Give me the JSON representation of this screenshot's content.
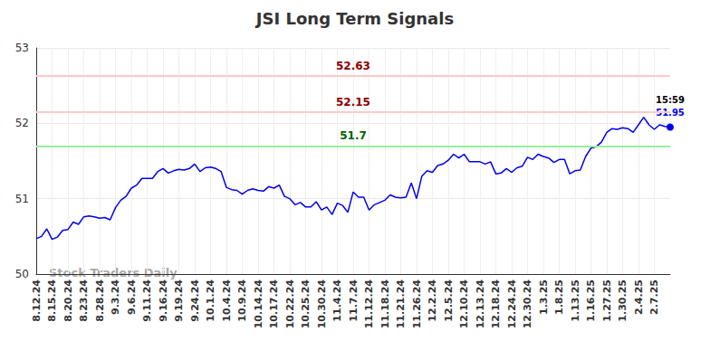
{
  "chart_data": {
    "type": "line",
    "title": "JSI Long Term Signals",
    "watermark": "Stock Traders Daily",
    "color": "#0000ee",
    "grid": true,
    "ylim": [
      50,
      53
    ],
    "yticks": [
      50,
      51,
      52,
      53
    ],
    "categories": [
      "8.12.24",
      null,
      null,
      "8.15.24",
      null,
      null,
      "8.20.24",
      null,
      null,
      "8.23.24",
      null,
      null,
      "8.28.24",
      null,
      null,
      "9.3.24",
      null,
      null,
      "9.6.24",
      null,
      null,
      "9.11.24",
      null,
      null,
      "9.16.24",
      null,
      null,
      "9.19.24",
      null,
      null,
      "9.24.24",
      null,
      null,
      "10.1.24",
      null,
      null,
      "10.4.24",
      null,
      null,
      "10.9.24",
      null,
      null,
      "10.14.24",
      null,
      null,
      "10.17.24",
      null,
      null,
      "10.22.24",
      null,
      null,
      "10.25.24",
      null,
      null,
      "10.30.24",
      null,
      null,
      "11.4.24",
      null,
      null,
      "11.7.24",
      null,
      null,
      "11.12.24",
      null,
      null,
      "11.18.24",
      null,
      null,
      "11.21.24",
      null,
      null,
      "11.26.24",
      null,
      null,
      "12.2.24",
      null,
      null,
      "12.5.24",
      null,
      null,
      "12.10.24",
      null,
      null,
      "12.13.24",
      null,
      null,
      "12.18.24",
      null,
      null,
      "12.24.24",
      null,
      null,
      "12.30.24",
      null,
      null,
      "1.3.25",
      null,
      null,
      "1.8.25",
      null,
      null,
      "1.13.25",
      null,
      null,
      "1.16.25",
      null,
      null,
      "1.27.25",
      null,
      null,
      "1.30.25",
      null,
      null,
      "2.4.25",
      null,
      null,
      "2.7.25",
      null,
      null,
      null
    ],
    "values": [
      50.47,
      50.5,
      50.6,
      50.46,
      50.49,
      50.58,
      50.59,
      50.69,
      50.66,
      50.76,
      50.77,
      50.76,
      50.74,
      50.75,
      50.72,
      50.88,
      50.98,
      51.03,
      51.14,
      51.18,
      51.27,
      51.27,
      51.27,
      51.36,
      51.4,
      51.34,
      51.37,
      51.39,
      51.38,
      51.4,
      51.46,
      51.36,
      51.41,
      51.42,
      51.4,
      51.36,
      51.15,
      51.12,
      51.11,
      51.06,
      51.11,
      51.13,
      51.11,
      51.1,
      51.16,
      51.14,
      51.18,
      51.03,
      51.0,
      50.92,
      50.95,
      50.89,
      50.89,
      50.96,
      50.85,
      50.89,
      50.79,
      50.94,
      50.91,
      50.82,
      51.09,
      51.02,
      51.02,
      50.85,
      50.92,
      50.95,
      50.98,
      51.05,
      51.02,
      51.01,
      51.02,
      51.21,
      51.0,
      51.3,
      51.37,
      51.35,
      51.44,
      51.46,
      51.51,
      51.59,
      51.54,
      51.59,
      51.49,
      51.49,
      51.49,
      51.46,
      51.49,
      51.33,
      51.34,
      51.4,
      51.35,
      51.41,
      51.43,
      51.55,
      51.52,
      51.59,
      51.56,
      51.54,
      51.48,
      51.52,
      51.52,
      51.33,
      51.37,
      51.38,
      51.56,
      51.67,
      51.69,
      51.75,
      51.88,
      51.93,
      51.92,
      51.94,
      51.93,
      51.88,
      51.98,
      52.08,
      51.98,
      51.92,
      51.98,
      51.96,
      51.95
    ],
    "last_point_label": "15:59",
    "reference_lines": [
      {
        "value": 52.63,
        "color": "#ffc8c8",
        "label_color": "#8b0000"
      },
      {
        "value": 52.15,
        "color": "#ffc8c8",
        "label_color": "#8b0000"
      },
      {
        "value": 51.7,
        "color": "#99ee99",
        "label_color": "#006400"
      }
    ]
  }
}
